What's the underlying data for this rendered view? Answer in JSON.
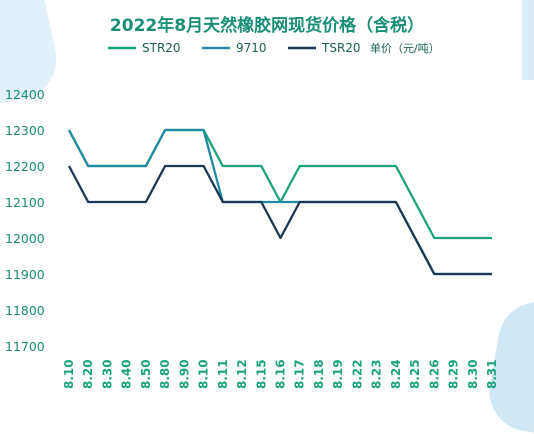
{
  "chart_data": {
    "type": "line",
    "title": "2022年8月天然橡胶网现货价格（含税）",
    "units_label": "单价（元/吨）",
    "categories": [
      "8.10",
      "8.20",
      "8.30",
      "8.40",
      "8.50",
      "8.80",
      "8.90",
      "8.10",
      "8.11",
      "8.12",
      "8.15",
      "8.16",
      "8.17",
      "8.18",
      "8.19",
      "8.22",
      "8.23",
      "8.24",
      "8.25",
      "8.26",
      "8.29",
      "8.30",
      "8.31"
    ],
    "series": [
      {
        "name": "STR20",
        "color": "#1ba37e",
        "values": [
          12300,
          12200,
          12200,
          12200,
          12200,
          12300,
          12300,
          12300,
          12200,
          12200,
          12200,
          12100,
          12200,
          12200,
          12200,
          12200,
          12200,
          12200,
          12100,
          12000,
          12000,
          12000,
          12000
        ]
      },
      {
        "name": "9710",
        "color": "#1f8aa0",
        "values": [
          12300,
          12200,
          12200,
          12200,
          12200,
          12300,
          12300,
          12300,
          12100,
          12100,
          12100,
          12100,
          12100,
          12100,
          12100,
          12100,
          12100,
          12100,
          12000,
          11900,
          11900,
          11900,
          11900
        ]
      },
      {
        "name": "TSR20",
        "color": "#1c3654",
        "values": [
          12200,
          12100,
          12100,
          12100,
          12100,
          12200,
          12200,
          12200,
          12100,
          12100,
          12100,
          12000,
          12100,
          12100,
          12100,
          12100,
          12100,
          12100,
          12000,
          11900,
          11900,
          11900,
          11900
        ]
      }
    ],
    "yticks": [
      12400,
      12300,
      12200,
      12100,
      12000,
      11900,
      11800,
      11700
    ],
    "ylim": [
      11700,
      12400
    ],
    "grid": false,
    "legend": "top"
  },
  "colors": {
    "title": "#1a8f77",
    "ytick": "#1b8a73",
    "xtick": "#1ba37e",
    "legend_text": "#1b5f55"
  }
}
